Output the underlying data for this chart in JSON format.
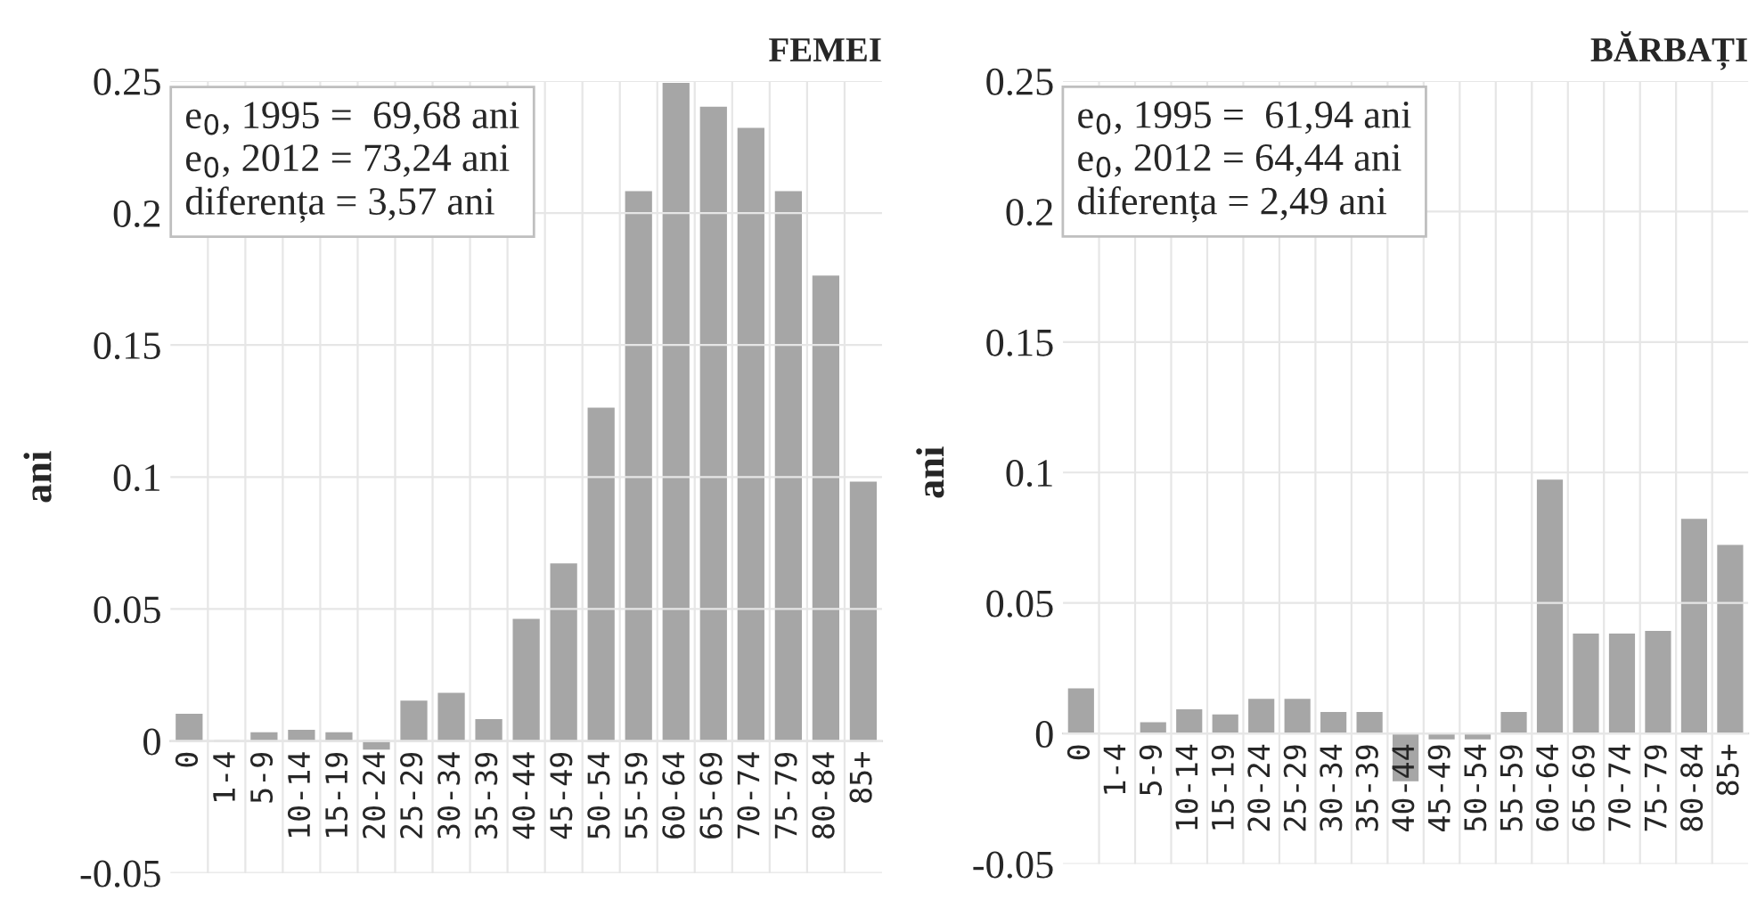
{
  "chart_data": [
    {
      "type": "bar",
      "title": "FEMEI",
      "ylabel": "ani",
      "categories": [
        "0",
        "1-4",
        "5-9",
        "10-14",
        "15-19",
        "20-24",
        "25-29",
        "30-34",
        "35-39",
        "40-44",
        "45-49",
        "50-54",
        "55-59",
        "60-64",
        "65-69",
        "70-74",
        "75-79",
        "80-84",
        "85+"
      ],
      "series": [
        {
          "color": "#a6a6a6",
          "values": [
            0.01,
            0,
            0.003,
            0.004,
            0.003,
            -0.003,
            0.015,
            0.018,
            0.008,
            0.046,
            0.067,
            0.126,
            0.208,
            0.249,
            0.24,
            0.232,
            0.208,
            0.176,
            0.098
          ]
        }
      ],
      "ylim": [
        -0.05,
        0.25
      ],
      "yticks": [
        -0.05,
        0,
        0.05,
        0.1,
        0.15,
        0.2,
        0.25
      ],
      "grid": true,
      "annotations": [
        "e$_{0}$, 1995 =  69,68 ani\ne$_{0}$, 2012 = 73,24 ani\ndiferența = 3,57 ani"
      ]
    },
    {
      "type": "bar",
      "title": "BĂRBAȚI",
      "ylabel": "ani",
      "categories": [
        "0",
        "1-4",
        "5-9",
        "10-14",
        "15-19",
        "20-24",
        "25-29",
        "30-34",
        "35-39",
        "40-44",
        "45-49",
        "50-54",
        "55-59",
        "60-64",
        "65-69",
        "70-74",
        "75-79",
        "80-84",
        "85+"
      ],
      "series": [
        {
          "color": "#a6a6a6",
          "values": [
            0.017,
            0,
            0.004,
            0.009,
            0.007,
            0.013,
            0.013,
            0.008,
            0.008,
            -0.018,
            -0.002,
            -0.002,
            0.008,
            0.097,
            0.038,
            0.038,
            0.039,
            0.082,
            0.072
          ]
        }
      ],
      "ylim": [
        -0.05,
        0.25
      ],
      "yticks": [
        -0.05,
        0,
        0.05,
        0.1,
        0.15,
        0.2,
        0.25
      ],
      "grid": true,
      "annotations": [
        "e$_{0}$, 1995 =  61,94 ani\ne$_{0}$, 2012 = 64,44 ani\ndiferența = 2,49 ani"
      ]
    }
  ]
}
